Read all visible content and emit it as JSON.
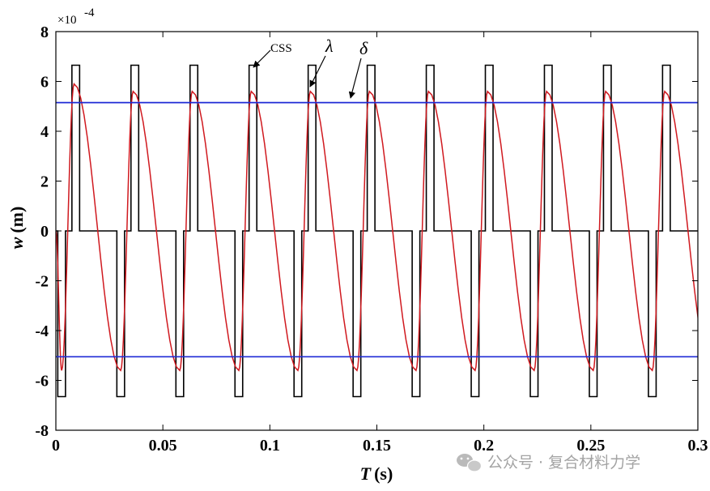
{
  "chart_data": {
    "type": "line",
    "xlabel_italic": "T",
    "xlabel_unit": "(s)",
    "ylabel_italic": "w",
    "ylabel_unit": "(m)",
    "y_exponent_base": "×10",
    "y_exponent": "-4",
    "xlim": [
      0,
      0.3
    ],
    "ylim": [
      -8,
      8
    ],
    "x_ticks": [
      0,
      0.05,
      0.1,
      0.15,
      0.2,
      0.25,
      0.3
    ],
    "x_tick_labels": [
      "0",
      "0.05",
      "0.1",
      "0.15",
      "0.2",
      "0.25",
      "0.3"
    ],
    "y_ticks": [
      8,
      6,
      4,
      2,
      0,
      -2,
      -4,
      -6,
      -8
    ],
    "y_tick_labels": [
      "8",
      "6",
      "4",
      "2",
      "0",
      "-2",
      "-4",
      "-6",
      "-8"
    ],
    "series": [
      {
        "name": "CSS",
        "color": "#000000",
        "shape": "square-pulse",
        "amplitude": 6.65,
        "period": 0.0276,
        "pulse_width": 0.0036,
        "first_positive_pulse_start": 0.0075,
        "first_negative_pulse_start": 0.0009
      },
      {
        "name": "λ",
        "color": "#d0191f",
        "shape": "oscillation",
        "amplitude": 5.6,
        "first_peak_amplitude": 5.9,
        "period": 0.0276,
        "first_trough_x": 0.0027,
        "first_peak_x": 0.0085
      },
      {
        "name": "δ",
        "color": "#1f2bd6",
        "shape": "constant-bounds",
        "values": [
          5.15,
          -5.05
        ]
      }
    ],
    "annotations": [
      {
        "text": "CSS",
        "target": "CSS"
      },
      {
        "text": "λ",
        "target": "λ"
      },
      {
        "text": "δ",
        "target": "δ"
      }
    ],
    "grid": false,
    "legend": "none"
  },
  "watermark": {
    "icon": "wechat-icon",
    "text": "公众号 · 复合材料力学"
  }
}
